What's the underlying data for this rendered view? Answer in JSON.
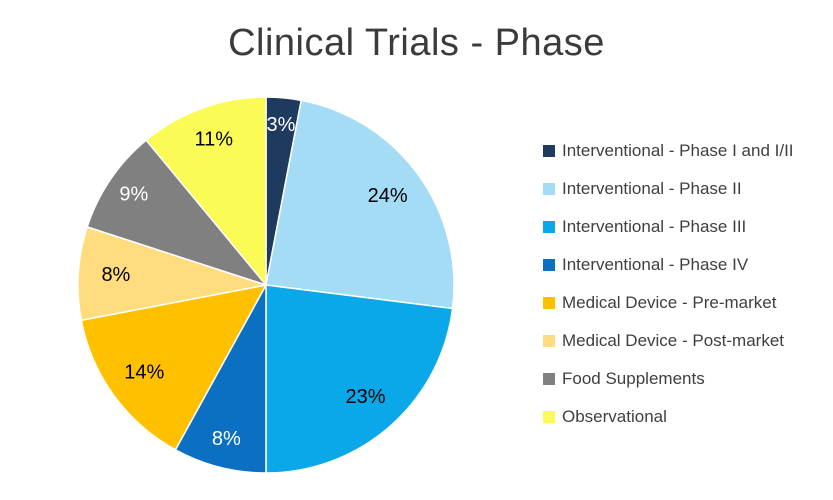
{
  "title": {
    "text": "Clinical Trials - Phase",
    "color": "#3b3b3b"
  },
  "chart_data": {
    "type": "pie",
    "title": "Clinical Trials - Phase",
    "categories": [
      "Interventional - Phase I and I/II",
      "Interventional - Phase II",
      "Interventional - Phase III",
      "Interventional - Phase IV",
      "Medical Device - Pre-market",
      "Medical Device - Post-market",
      "Food Supplements",
      "Observational"
    ],
    "values": [
      3,
      24,
      23,
      8,
      14,
      8,
      9,
      11
    ],
    "data_labels": [
      "3%",
      "24%",
      "23%",
      "8%",
      "14%",
      "8%",
      "9%",
      "11%"
    ],
    "colors": [
      "#1F3A5F",
      "#A4DBF5",
      "#0AA8E8",
      "#0C70C2",
      "#FFC000",
      "#FFDC7E",
      "#808080",
      "#FBFB56"
    ],
    "label_colors": [
      "#ffffff",
      "#000000",
      "#000000",
      "#ffffff",
      "#000000",
      "#000000",
      "#ffffff",
      "#000000"
    ],
    "label_radius_fractions": [
      0.85,
      0.8,
      0.8,
      0.85,
      0.8,
      0.8,
      0.85,
      0.82
    ],
    "start_angle_deg": 0,
    "direction": "clockwise",
    "legend_position": "right",
    "grid": false
  },
  "legend": {
    "text_color": "#3f3f3f"
  }
}
